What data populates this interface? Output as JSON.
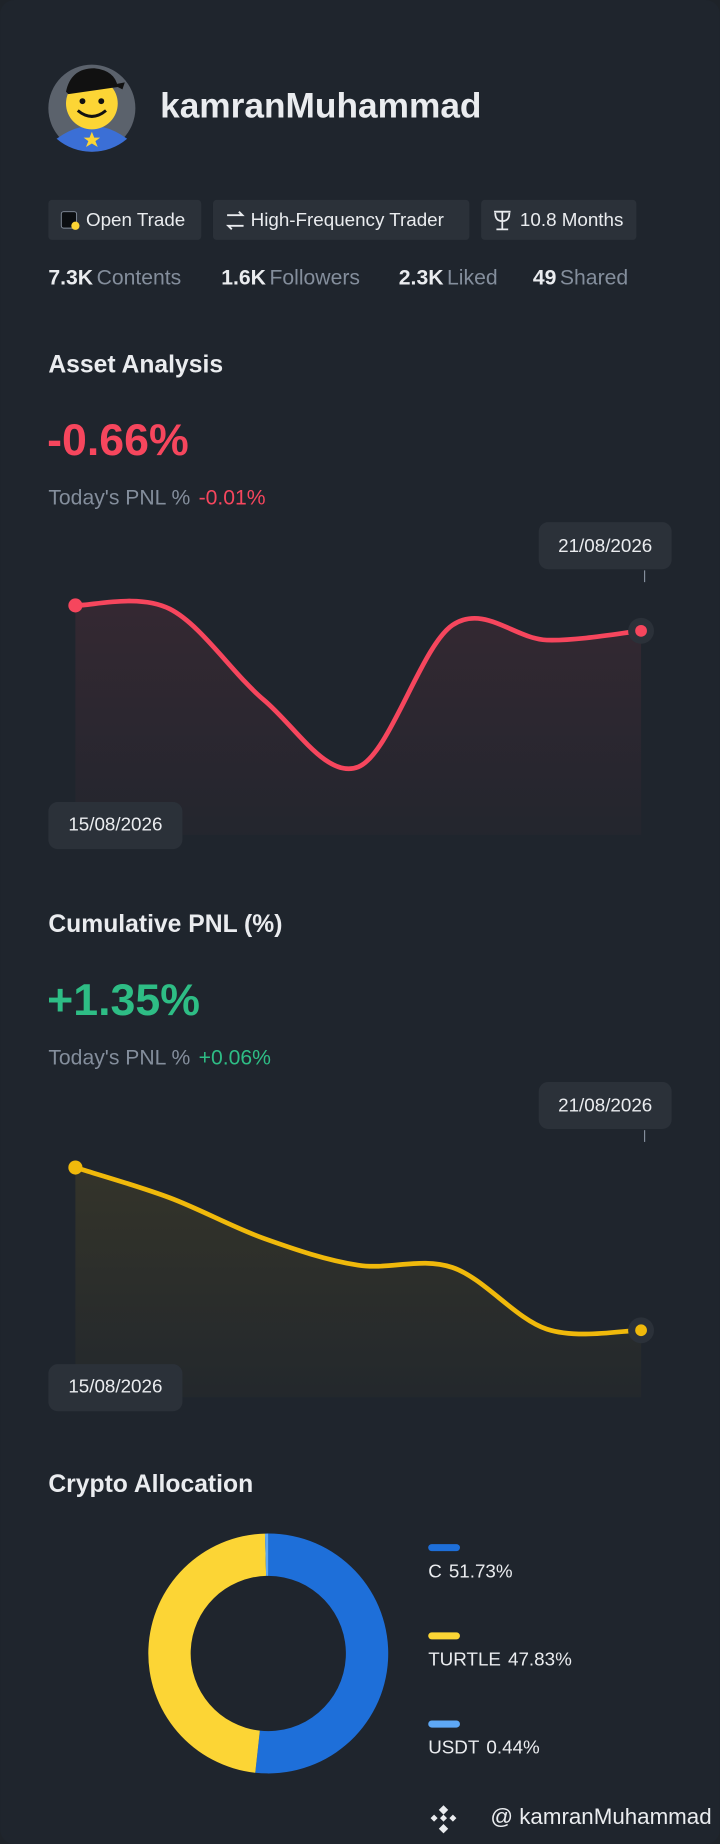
{
  "profile": {
    "username": "kamranMuhammad",
    "tags": [
      "Open Trade",
      "High-Frequency Trader",
      "10.8 Months"
    ],
    "stats": [
      {
        "value": "7.3K",
        "label": "Contents"
      },
      {
        "value": "1.6K",
        "label": "Followers"
      },
      {
        "value": "2.3K",
        "label": "Liked"
      },
      {
        "value": "49",
        "label": "Shared"
      }
    ]
  },
  "asset_analysis": {
    "title": "Asset Analysis",
    "value": "-0.66%",
    "today_label": "Today's PNL %",
    "today_value": "-0.01%",
    "chart": {
      "type": "line",
      "x": [
        "15/08/2026",
        null,
        null,
        null,
        null,
        null,
        "21/08/2026"
      ],
      "values": [
        -0.22,
        -0.28,
        -1.86,
        -3.02,
        -0.56,
        -0.82,
        -0.66
      ],
      "color": "#f6465d",
      "ylim": [
        -4.2,
        1.0
      ]
    }
  },
  "cumulative_pnl": {
    "title": "Cumulative PNL (%)",
    "value": "+1.35%",
    "today_label": "Today's PNL %",
    "today_value": "+0.06%",
    "chart": {
      "type": "line",
      "x": [
        "15/08/2026",
        null,
        null,
        null,
        null,
        null,
        "21/08/2026"
      ],
      "values": [
        4.15,
        3.63,
        2.93,
        2.47,
        2.43,
        1.37,
        1.35
      ],
      "color": "#f0b90b",
      "ylim": [
        0.2,
        5.4
      ]
    }
  },
  "crypto_allocation": {
    "title": "Crypto Allocation",
    "chart": {
      "type": "donut",
      "categories": [
        "C",
        "TURTLE",
        "USDT"
      ],
      "values": [
        51.73,
        47.83,
        0.44
      ],
      "value_labels": [
        "51.73%",
        "47.83%",
        "0.44%"
      ],
      "colors": [
        "#1e6fd9",
        "#fcd535",
        "#5ea8f5"
      ]
    }
  },
  "footer": {
    "handle": "@ kamranMuhammad"
  }
}
